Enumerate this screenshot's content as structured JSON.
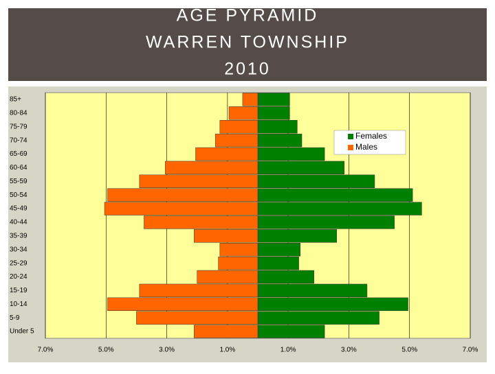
{
  "chart_data": {
    "type": "bar",
    "orientation": "horizontal",
    "title": [
      "AGE PYRAMID",
      "WARREN TOWNSHIP",
      "2010"
    ],
    "categories": [
      "85+",
      "80-84",
      "75-79",
      "70-74",
      "65-69",
      "60-64",
      "55-59",
      "50-54",
      "45-49",
      "40-44",
      "35-39",
      "30-34",
      "25-29",
      "20-24",
      "15-19",
      "10-14",
      "5-9",
      "Under 5"
    ],
    "series": [
      {
        "name": "Females",
        "color": "#008000",
        "values": [
          1.05,
          1.05,
          1.3,
          1.45,
          2.2,
          2.85,
          3.85,
          5.1,
          5.4,
          4.5,
          2.6,
          1.4,
          1.35,
          1.85,
          3.6,
          4.95,
          4.0,
          2.2
        ]
      },
      {
        "name": "Males",
        "color": "#ff6600",
        "values": [
          -0.5,
          -0.95,
          -1.25,
          -1.4,
          -2.05,
          -3.05,
          -3.9,
          -4.95,
          -5.05,
          -3.75,
          -2.1,
          -1.25,
          -1.3,
          -2.0,
          -3.9,
          -4.95,
          -4.0,
          -2.1
        ]
      }
    ],
    "xlim": [
      -7,
      7
    ],
    "xticks": [
      {
        "value": -7,
        "label": "7.0%"
      },
      {
        "value": -5,
        "label": "5.0%"
      },
      {
        "value": -3,
        "label": "3.0%"
      },
      {
        "value": -1,
        "label": "1.0%"
      },
      {
        "value": 1,
        "label": "1.0%"
      },
      {
        "value": 3,
        "label": "3.0%"
      },
      {
        "value": 5,
        "label": "5.0%"
      },
      {
        "value": 7,
        "label": "7.0%"
      }
    ],
    "grid": true
  }
}
